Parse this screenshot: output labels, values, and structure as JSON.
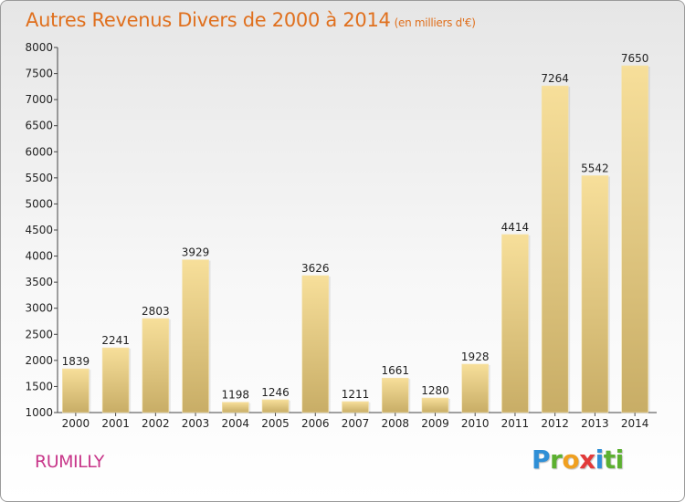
{
  "title": "Autres Revenus Divers de 2000 à 2014",
  "subtitle": "(en milliers d'€)",
  "city": "RUMILLY",
  "logo": [
    "P",
    "r",
    "o",
    "x",
    "i",
    "ti"
  ],
  "colors": {
    "title": "#e0701e",
    "city": "#c8378a",
    "bar_top": "#f7df9a",
    "bar_bottom": "#c8ad66"
  },
  "chart_data": {
    "type": "bar",
    "title": "Autres Revenus Divers de 2000 à 2014",
    "subtitle": "(en milliers d'€)",
    "categories": [
      "2000",
      "2001",
      "2002",
      "2003",
      "2004",
      "2005",
      "2006",
      "2007",
      "2008",
      "2009",
      "2010",
      "2011",
      "2012",
      "2013",
      "2014"
    ],
    "values": [
      1839,
      2241,
      2803,
      3929,
      1198,
      1246,
      3626,
      1211,
      1661,
      1280,
      1928,
      4414,
      7264,
      5542,
      7650
    ],
    "ylim": [
      1000,
      8000
    ],
    "yticks": [
      1000,
      1500,
      2000,
      2500,
      3000,
      3500,
      4000,
      4500,
      5000,
      5500,
      6000,
      6500,
      7000,
      7500,
      8000
    ],
    "grid": false,
    "data_labels": true
  }
}
